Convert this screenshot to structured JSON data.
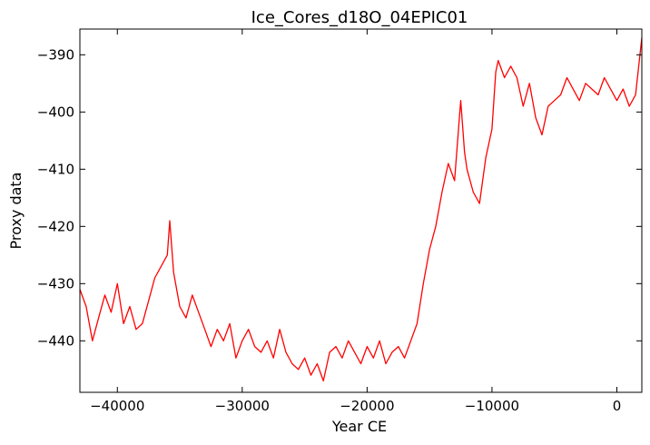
{
  "chart_data": {
    "type": "line",
    "title": "Ice_Cores_d18O_04EPIC01",
    "xlabel": "Year CE",
    "ylabel": "Proxy data",
    "xlim": [
      -43000,
      2000
    ],
    "ylim": [
      -449,
      -385.5
    ],
    "xticks": [
      -40000,
      -30000,
      -20000,
      -10000,
      0
    ],
    "xtick_labels": [
      "−40000",
      "−30000",
      "−20000",
      "−10000",
      "0"
    ],
    "yticks": [
      -390,
      -400,
      -410,
      -420,
      -430,
      -440
    ],
    "ytick_labels": [
      "−390",
      "−400",
      "−410",
      "−420",
      "−430",
      "−440"
    ],
    "grid": false,
    "series": [
      {
        "color": "#ff0000",
        "x": [
          -43000,
          -42500,
          -42000,
          -41500,
          -41000,
          -40500,
          -40000,
          -39500,
          -39000,
          -38500,
          -38000,
          -37500,
          -37000,
          -36500,
          -36000,
          -35800,
          -35500,
          -35000,
          -34500,
          -34000,
          -33500,
          -33000,
          -32500,
          -32000,
          -31500,
          -31000,
          -30500,
          -30000,
          -29500,
          -29000,
          -28500,
          -28000,
          -27500,
          -27000,
          -26500,
          -26000,
          -25500,
          -25000,
          -24500,
          -24000,
          -23500,
          -23000,
          -22500,
          -22000,
          -21500,
          -21000,
          -20500,
          -20000,
          -19500,
          -19000,
          -18500,
          -18000,
          -17500,
          -17000,
          -16500,
          -16000,
          -15500,
          -15000,
          -14500,
          -14000,
          -13500,
          -13000,
          -12500,
          -12200,
          -12000,
          -11500,
          -11000,
          -10500,
          -10000,
          -9700,
          -9500,
          -9000,
          -8500,
          -8000,
          -7500,
          -7000,
          -6500,
          -6000,
          -5500,
          -5000,
          -4500,
          -4000,
          -3500,
          -3000,
          -2500,
          -2000,
          -1500,
          -1000,
          -500,
          0,
          500,
          1000,
          1500,
          2000
        ],
        "y": [
          -431,
          -434,
          -440,
          -436,
          -432,
          -435,
          -430,
          -437,
          -434,
          -438,
          -437,
          -433,
          -429,
          -427,
          -425,
          -419,
          -428,
          -434,
          -436,
          -432,
          -435,
          -438,
          -441,
          -438,
          -440,
          -437,
          -443,
          -440,
          -438,
          -441,
          -442,
          -440,
          -443,
          -438,
          -442,
          -444,
          -445,
          -443,
          -446,
          -444,
          -447,
          -442,
          -441,
          -443,
          -440,
          -442,
          -444,
          -441,
          -443,
          -440,
          -444,
          -442,
          -441,
          -443,
          -440,
          -437,
          -430,
          -424,
          -420,
          -414,
          -409,
          -412,
          -398,
          -407,
          -410,
          -414,
          -416,
          -408,
          -403,
          -393,
          -391,
          -394,
          -392,
          -394,
          -399,
          -395,
          -401,
          -404,
          -399,
          -398,
          -397,
          -394,
          -396,
          -398,
          -395,
          -396,
          -397,
          -394,
          -396,
          -398,
          -396,
          -399,
          -397,
          -387
        ]
      }
    ]
  }
}
